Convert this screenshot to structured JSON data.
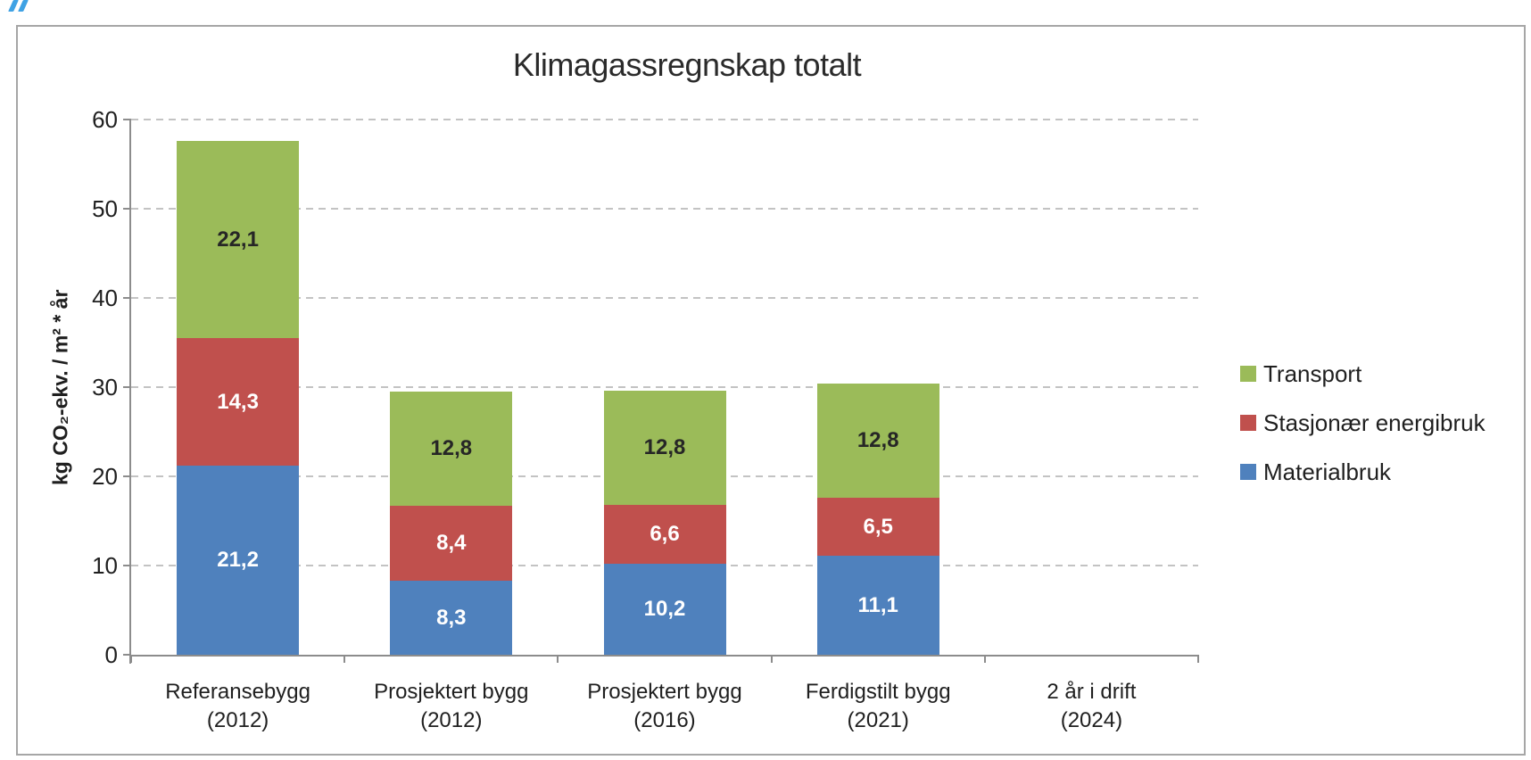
{
  "decorations": {
    "corner_mark_color": "#3FA2E4",
    "frame_border_color": "#A6A6A6",
    "axis_color": "#8C8C8C",
    "gridline_color": "#C3C3C3"
  },
  "chart_data": {
    "type": "bar",
    "stacked": true,
    "title": "Klimagassregnskap totalt",
    "xlabel": "",
    "ylabel": "kg CO₂-ekv. / m² * år",
    "ylim": [
      0,
      60
    ],
    "yticks": [
      0,
      10,
      20,
      30,
      40,
      50,
      60
    ],
    "grid": "horizontal dashed",
    "legend_position": "right",
    "categories": [
      {
        "label": "Referansebygg",
        "sublabel": "(2012)"
      },
      {
        "label": "Prosjektert bygg",
        "sublabel": "(2012)"
      },
      {
        "label": "Prosjektert bygg",
        "sublabel": "(2016)"
      },
      {
        "label": "Ferdigstilt bygg",
        "sublabel": "(2021)"
      },
      {
        "label": "2 år i drift",
        "sublabel": "(2024)"
      }
    ],
    "series": [
      {
        "name": "Materialbruk",
        "color": "#4F81BD",
        "label_color": "#FFFFFF",
        "values": [
          21.2,
          8.3,
          10.2,
          11.1,
          null
        ],
        "labels": [
          "21,2",
          "8,3",
          "10,2",
          "11,1",
          ""
        ]
      },
      {
        "name": "Stasjonær energibruk",
        "color": "#C0504D",
        "label_color": "#FFFFFF",
        "values": [
          14.3,
          8.4,
          6.6,
          6.5,
          null
        ],
        "labels": [
          "14,3",
          "8,4",
          "6,6",
          "6,5",
          ""
        ]
      },
      {
        "name": "Transport",
        "color": "#9BBB59",
        "label_color": "#262626",
        "values": [
          22.1,
          12.8,
          12.8,
          12.8,
          null
        ],
        "labels": [
          "22,1",
          "12,8",
          "12,8",
          "12,8",
          ""
        ]
      }
    ],
    "legend": [
      "Transport",
      "Stasjonær energibruk",
      "Materialbruk"
    ]
  }
}
